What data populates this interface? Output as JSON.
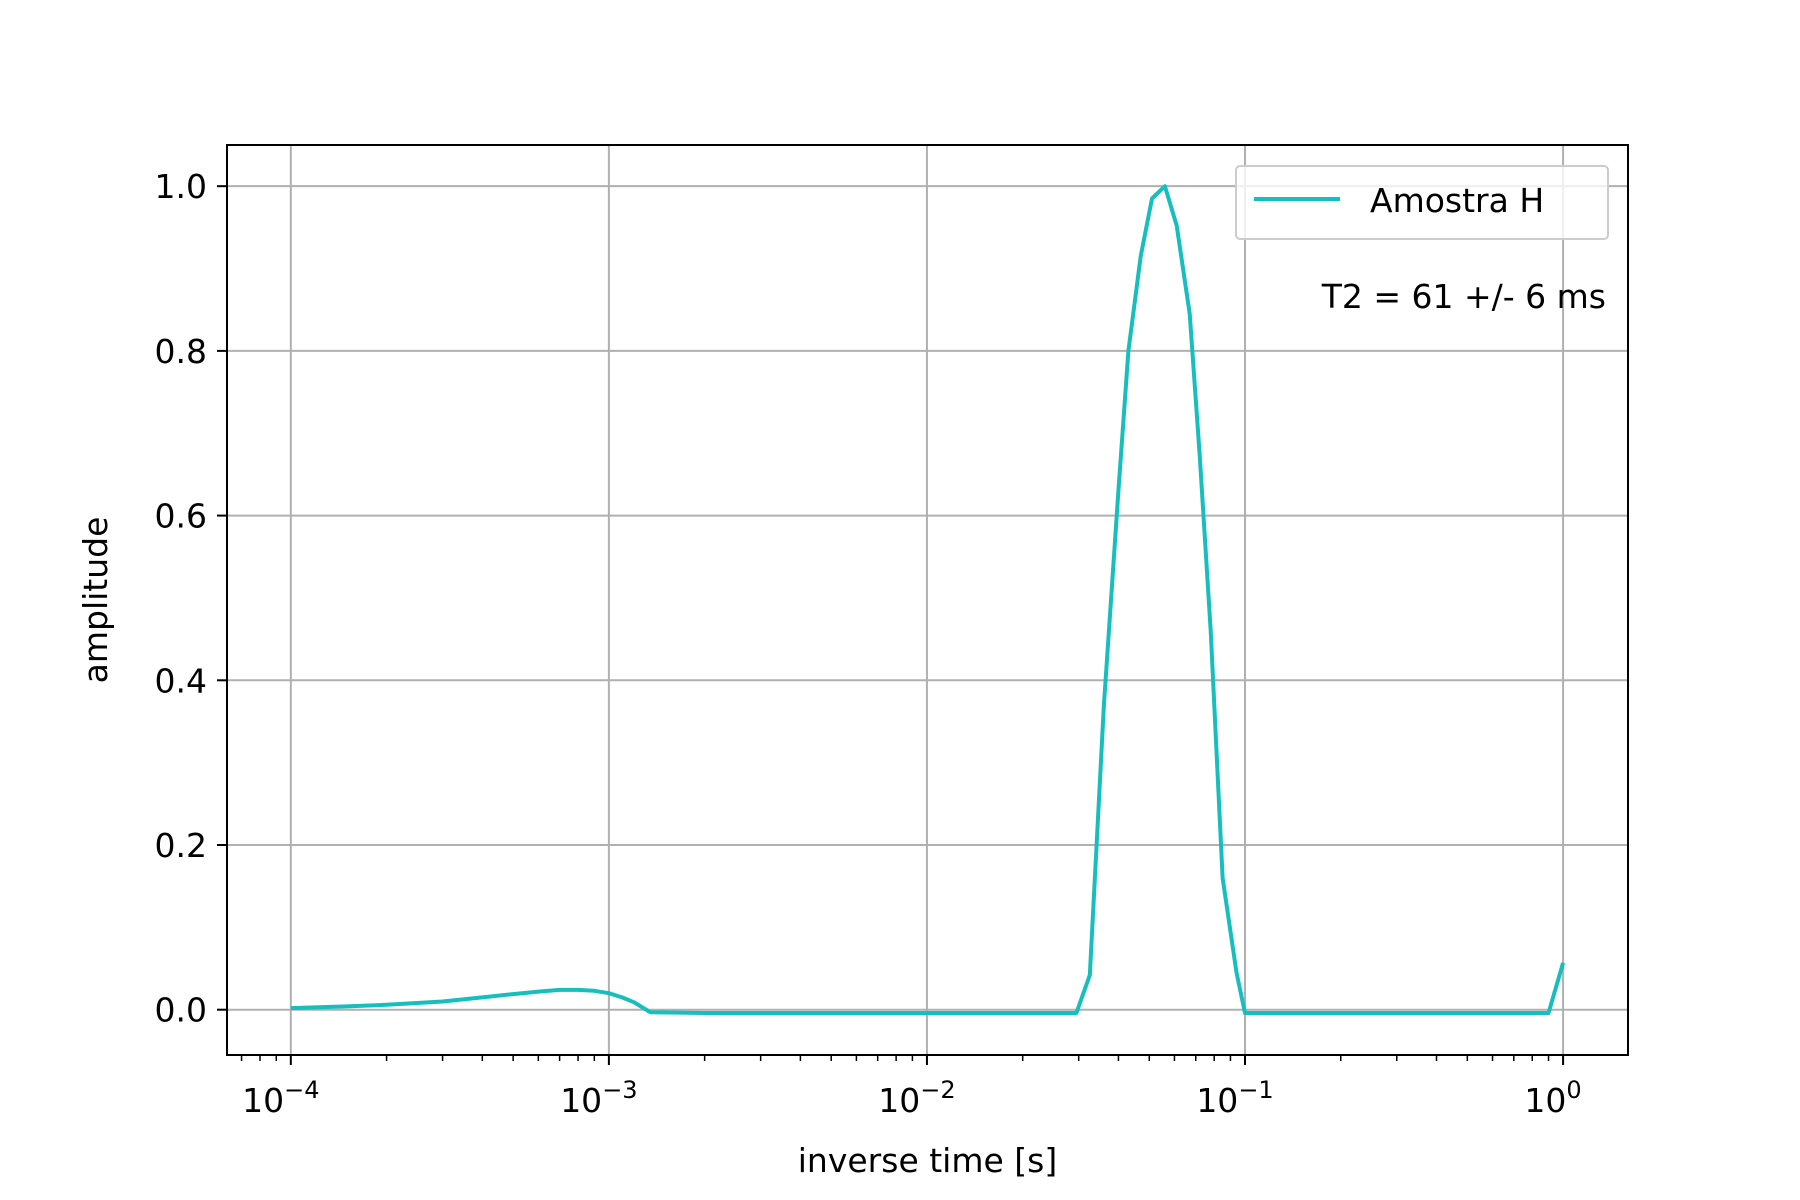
{
  "chart_data": {
    "type": "line",
    "xlabel": "inverse time [s]",
    "ylabel": "amplitude",
    "xscale": "log",
    "xlim": [
      6.3e-05,
      1.6
    ],
    "ylim": [
      -0.055,
      1.05
    ],
    "grid": true,
    "legend_position": "top-right",
    "xticks": [
      {
        "value": 0.0001,
        "base": "10",
        "exp": "−4"
      },
      {
        "value": 0.001,
        "base": "10",
        "exp": "−3"
      },
      {
        "value": 0.01,
        "base": "10",
        "exp": "−2"
      },
      {
        "value": 0.1,
        "base": "10",
        "exp": "−1"
      },
      {
        "value": 1,
        "base": "10",
        "exp": "0"
      }
    ],
    "yticks": [
      {
        "value": 0.0,
        "label": "0.0"
      },
      {
        "value": 0.2,
        "label": "0.2"
      },
      {
        "value": 0.4,
        "label": "0.4"
      },
      {
        "value": 0.6,
        "label": "0.6"
      },
      {
        "value": 0.8,
        "label": "0.8"
      },
      {
        "value": 1.0,
        "label": "1.0"
      }
    ],
    "annotation": "T2 = 61 +/- 6 ms",
    "series": [
      {
        "name": "Amostra H",
        "color": "#17bebe",
        "x": [
          0.0001,
          0.00015,
          0.0002,
          0.0003,
          0.0004,
          0.0005,
          0.0006,
          0.0007,
          0.0008,
          0.0009,
          0.001,
          0.0011,
          0.0012,
          0.00135,
          0.002,
          0.005,
          0.01,
          0.02,
          0.0295,
          0.0325,
          0.036,
          0.04,
          0.043,
          0.047,
          0.051,
          0.056,
          0.061,
          0.067,
          0.072,
          0.078,
          0.085,
          0.094,
          0.1,
          0.107,
          0.2,
          0.5,
          0.9,
          1.0
        ],
        "y": [
          0.002,
          0.004,
          0.006,
          0.01,
          0.015,
          0.019,
          0.022,
          0.024,
          0.024,
          0.023,
          0.02,
          0.015,
          0.009,
          -0.003,
          -0.004,
          -0.004,
          -0.004,
          -0.004,
          -0.004,
          0.042,
          0.37,
          0.63,
          0.8,
          0.915,
          0.985,
          1.0,
          0.952,
          0.845,
          0.675,
          0.46,
          0.16,
          0.045,
          -0.004,
          -0.004,
          -0.004,
          -0.004,
          -0.004,
          0.057
        ]
      }
    ]
  }
}
